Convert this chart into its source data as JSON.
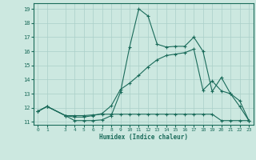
{
  "xlabel": "Humidex (Indice chaleur)",
  "bg_color": "#cce8e0",
  "grid_color": "#aacfc8",
  "line_color": "#1a6b5a",
  "xlim": [
    -0.5,
    23.5
  ],
  "ylim": [
    10.8,
    19.4
  ],
  "xticks": [
    0,
    1,
    3,
    4,
    5,
    6,
    7,
    8,
    9,
    10,
    11,
    12,
    13,
    14,
    15,
    16,
    17,
    18,
    19,
    20,
    21,
    22,
    23
  ],
  "yticks": [
    11,
    12,
    13,
    14,
    15,
    16,
    17,
    18,
    19
  ],
  "line1_x": [
    0,
    1,
    3,
    4,
    5,
    6,
    7,
    8,
    9,
    10,
    11,
    12,
    13,
    14,
    15,
    16,
    17,
    18,
    19,
    20,
    21,
    22,
    23
  ],
  "line1_y": [
    11.75,
    12.1,
    11.45,
    11.1,
    11.1,
    11.1,
    11.15,
    11.45,
    13.1,
    16.3,
    19.0,
    18.5,
    16.5,
    16.3,
    16.35,
    16.35,
    17.0,
    16.0,
    13.15,
    14.15,
    13.0,
    12.1,
    11.1
  ],
  "line2_x": [
    0,
    1,
    3,
    4,
    5,
    6,
    7,
    8,
    9,
    10,
    11,
    12,
    13,
    14,
    15,
    16,
    17,
    18,
    19,
    20,
    21,
    22,
    23
  ],
  "line2_y": [
    11.75,
    12.1,
    11.45,
    11.35,
    11.35,
    11.45,
    11.6,
    12.15,
    13.3,
    13.75,
    14.3,
    14.9,
    15.4,
    15.7,
    15.8,
    15.9,
    16.15,
    13.25,
    13.9,
    13.2,
    13.0,
    12.5,
    11.1
  ],
  "line3_x": [
    0,
    1,
    3,
    4,
    5,
    6,
    7,
    8,
    9,
    10,
    11,
    12,
    13,
    14,
    15,
    16,
    17,
    18,
    19,
    20,
    21,
    22,
    23
  ],
  "line3_y": [
    11.75,
    12.1,
    11.45,
    11.45,
    11.45,
    11.5,
    11.55,
    11.55,
    11.55,
    11.55,
    11.55,
    11.55,
    11.55,
    11.55,
    11.55,
    11.55,
    11.55,
    11.55,
    11.55,
    11.1,
    11.1,
    11.1,
    11.1
  ]
}
